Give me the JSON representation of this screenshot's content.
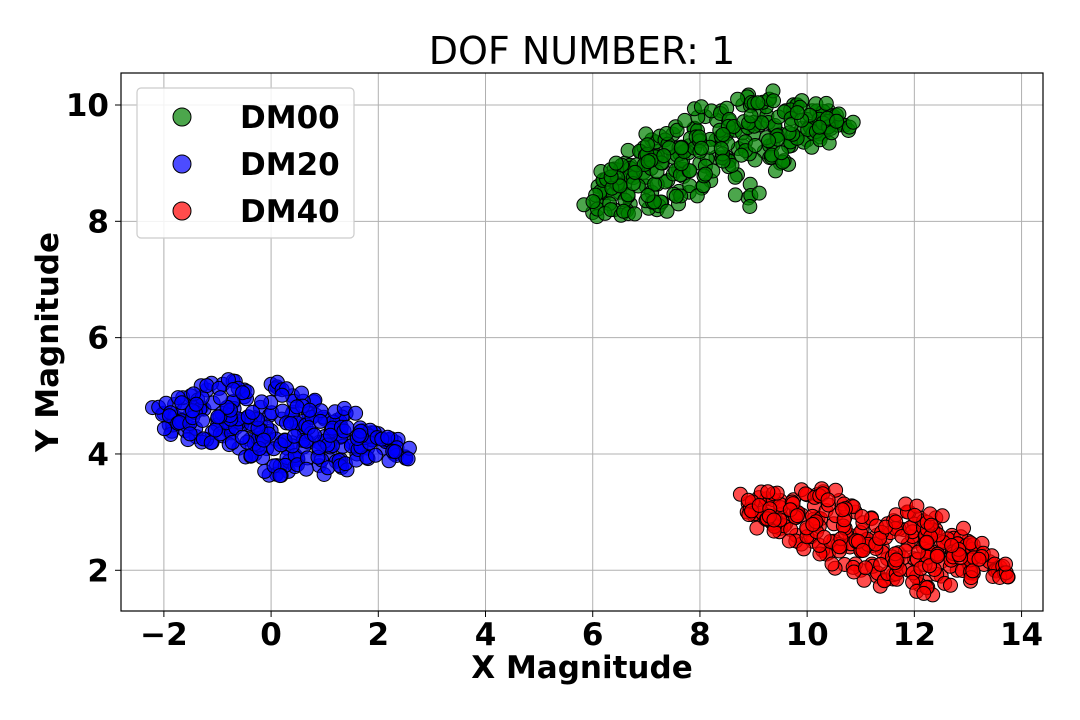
{
  "chart_data": {
    "type": "scatter",
    "title": "DOF NUMBER: 1",
    "xlabel": "X Magnitude",
    "ylabel": "Y Magnitude",
    "xlim": [
      -2.8,
      14.4
    ],
    "ylim": [
      1.3,
      10.55
    ],
    "xticks": [
      -2,
      0,
      2,
      4,
      6,
      8,
      10,
      12,
      14
    ],
    "xtick_labels": [
      "−2",
      "0",
      "2",
      "4",
      "6",
      "8",
      "10",
      "12",
      "14"
    ],
    "yticks": [
      2,
      4,
      6,
      8,
      10
    ],
    "ytick_labels": [
      "2",
      "4",
      "6",
      "8",
      "10"
    ],
    "grid": true,
    "legend_position": "top-left",
    "series": [
      {
        "name": "DM00",
        "color": "#008000",
        "points": [
          [
            6.0,
            8.15
          ],
          [
            6.1,
            8.6
          ],
          [
            6.2,
            8.35
          ],
          [
            6.3,
            8.75
          ],
          [
            6.4,
            8.2
          ],
          [
            6.5,
            8.5
          ],
          [
            6.6,
            9.0
          ],
          [
            6.7,
            8.3
          ],
          [
            6.8,
            8.85
          ],
          [
            6.9,
            9.2
          ],
          [
            7.0,
            8.6
          ],
          [
            7.1,
            9.4
          ],
          [
            7.2,
            8.2
          ],
          [
            7.3,
            9.0
          ],
          [
            7.4,
            8.7
          ],
          [
            7.5,
            9.5
          ],
          [
            7.6,
            8.9
          ],
          [
            7.7,
            9.2
          ],
          [
            7.8,
            8.5
          ],
          [
            7.9,
            9.6
          ],
          [
            8.0,
            9.0
          ],
          [
            8.1,
            9.8
          ],
          [
            8.2,
            8.7
          ],
          [
            8.3,
            9.4
          ],
          [
            8.4,
            9.9
          ],
          [
            8.5,
            9.1
          ],
          [
            8.6,
            9.6
          ],
          [
            8.7,
            8.8
          ],
          [
            8.8,
            10.0
          ],
          [
            8.9,
            8.4
          ],
          [
            9.0,
            9.5
          ],
          [
            9.1,
            9.9
          ],
          [
            9.2,
            9.2
          ],
          [
            9.3,
            10.1
          ],
          [
            9.4,
            9.6
          ],
          [
            9.5,
            9.0
          ],
          [
            9.6,
            9.9
          ],
          [
            9.7,
            9.3
          ],
          [
            9.8,
            10.0
          ],
          [
            9.9,
            9.6
          ],
          [
            10.0,
            9.4
          ],
          [
            10.1,
            9.9
          ],
          [
            10.2,
            9.7
          ],
          [
            10.3,
            9.5
          ],
          [
            10.4,
            9.9
          ],
          [
            10.5,
            9.8
          ],
          [
            10.6,
            9.7
          ],
          [
            10.7,
            9.65
          ],
          [
            6.6,
            8.65
          ],
          [
            7.0,
            9.0
          ],
          [
            7.5,
            9.1
          ],
          [
            8.0,
            9.4
          ],
          [
            8.5,
            9.5
          ],
          [
            9.0,
            9.7
          ],
          [
            9.5,
            9.5
          ],
          [
            10.0,
            9.75
          ],
          [
            7.2,
            9.2
          ],
          [
            7.8,
            9.3
          ],
          [
            8.3,
            9.1
          ],
          [
            8.8,
            9.3
          ],
          [
            9.3,
            9.3
          ],
          [
            6.4,
            8.9
          ],
          [
            7.1,
            8.5
          ],
          [
            7.6,
            8.3
          ]
        ]
      },
      {
        "name": "DM20",
        "color": "#0000ff",
        "points": [
          [
            -2.0,
            4.7
          ],
          [
            -1.9,
            4.5
          ],
          [
            -1.8,
            4.85
          ],
          [
            -1.7,
            4.6
          ],
          [
            -1.6,
            4.4
          ],
          [
            -1.5,
            5.0
          ],
          [
            -1.4,
            4.3
          ],
          [
            -1.3,
            4.8
          ],
          [
            -1.2,
            5.1
          ],
          [
            -1.1,
            4.2
          ],
          [
            -1.0,
            4.6
          ],
          [
            -0.9,
            5.2
          ],
          [
            -0.8,
            4.4
          ],
          [
            -0.7,
            4.9
          ],
          [
            -0.6,
            4.1
          ],
          [
            -0.5,
            5.1
          ],
          [
            -0.4,
            4.5
          ],
          [
            -0.3,
            4.0
          ],
          [
            -0.2,
            4.8
          ],
          [
            -0.1,
            4.3
          ],
          [
            0.0,
            5.2
          ],
          [
            0.1,
            3.8
          ],
          [
            0.2,
            4.6
          ],
          [
            0.3,
            4.1
          ],
          [
            0.4,
            5.0
          ],
          [
            0.5,
            3.9
          ],
          [
            0.6,
            4.5
          ],
          [
            0.7,
            4.2
          ],
          [
            0.8,
            4.9
          ],
          [
            0.9,
            3.8
          ],
          [
            1.0,
            4.6
          ],
          [
            1.1,
            4.0
          ],
          [
            1.2,
            4.5
          ],
          [
            1.3,
            3.9
          ],
          [
            1.4,
            4.7
          ],
          [
            1.5,
            4.2
          ],
          [
            1.6,
            4.0
          ],
          [
            1.7,
            4.4
          ],
          [
            1.8,
            4.1
          ],
          [
            1.9,
            4.25
          ],
          [
            2.0,
            4.35
          ],
          [
            2.1,
            4.1
          ],
          [
            2.2,
            4.2
          ],
          [
            2.3,
            4.0
          ],
          [
            2.5,
            3.95
          ],
          [
            0.0,
            4.4
          ],
          [
            -0.5,
            4.6
          ],
          [
            0.5,
            4.4
          ],
          [
            -1.0,
            4.5
          ],
          [
            1.0,
            4.3
          ],
          [
            -1.5,
            4.7
          ],
          [
            0.2,
            4.2
          ],
          [
            -0.2,
            4.55
          ],
          [
            0.7,
            4.7
          ],
          [
            -0.8,
            4.8
          ],
          [
            1.3,
            4.4
          ],
          [
            0.1,
            3.65
          ],
          [
            -0.3,
            4.25
          ],
          [
            0.9,
            4.2
          ],
          [
            1.6,
            4.3
          ]
        ]
      },
      {
        "name": "DM40",
        "color": "#ff0000",
        "points": [
          [
            8.9,
            3.15
          ],
          [
            9.0,
            2.95
          ],
          [
            9.1,
            3.25
          ],
          [
            9.2,
            2.9
          ],
          [
            9.3,
            3.1
          ],
          [
            9.4,
            2.75
          ],
          [
            9.5,
            3.2
          ],
          [
            9.6,
            2.8
          ],
          [
            9.7,
            3.05
          ],
          [
            9.8,
            2.6
          ],
          [
            9.9,
            2.95
          ],
          [
            10.0,
            3.3
          ],
          [
            10.1,
            2.5
          ],
          [
            10.2,
            2.9
          ],
          [
            10.3,
            3.35
          ],
          [
            10.4,
            2.3
          ],
          [
            10.5,
            2.8
          ],
          [
            10.6,
            3.2
          ],
          [
            10.7,
            2.1
          ],
          [
            10.8,
            2.6
          ],
          [
            10.9,
            3.0
          ],
          [
            11.0,
            2.0
          ],
          [
            11.1,
            2.5
          ],
          [
            11.2,
            2.9
          ],
          [
            11.3,
            1.9
          ],
          [
            11.4,
            2.4
          ],
          [
            11.5,
            2.8
          ],
          [
            11.6,
            1.85
          ],
          [
            11.7,
            2.3
          ],
          [
            11.8,
            2.7
          ],
          [
            11.9,
            2.0
          ],
          [
            12.0,
            2.5
          ],
          [
            12.1,
            2.9
          ],
          [
            12.2,
            1.8
          ],
          [
            12.3,
            2.3
          ],
          [
            12.4,
            2.7
          ],
          [
            12.5,
            1.9
          ],
          [
            12.6,
            2.4
          ],
          [
            12.7,
            2.6
          ],
          [
            12.8,
            2.0
          ],
          [
            12.9,
            2.3
          ],
          [
            13.0,
            2.5
          ],
          [
            13.1,
            1.95
          ],
          [
            13.2,
            2.3
          ],
          [
            13.3,
            2.1
          ],
          [
            13.4,
            2.15
          ],
          [
            13.5,
            2.0
          ],
          [
            13.6,
            2.05
          ],
          [
            10.0,
            2.7
          ],
          [
            10.5,
            2.5
          ],
          [
            11.0,
            2.35
          ],
          [
            11.5,
            2.2
          ],
          [
            12.0,
            2.2
          ],
          [
            12.5,
            2.15
          ],
          [
            9.5,
            2.95
          ],
          [
            10.8,
            2.4
          ],
          [
            11.3,
            2.6
          ],
          [
            12.2,
            2.5
          ],
          [
            12.8,
            2.3
          ],
          [
            11.9,
            3.0
          ],
          [
            12.4,
            2.9
          ],
          [
            9.8,
            3.0
          ],
          [
            12.1,
            1.75
          ]
        ]
      }
    ]
  }
}
